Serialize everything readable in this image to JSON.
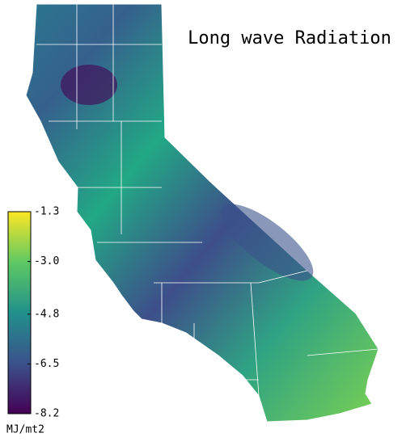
{
  "title": "Long wave Radiation",
  "colorbar": {
    "range": [
      -8.2,
      -1.3
    ],
    "ticks": [
      -1.3,
      {
        "value": -3,
        "label": "-3.0"
      },
      -4.8,
      -6.5,
      -8.2
    ],
    "unit": "MJ/mt2"
  }
}
